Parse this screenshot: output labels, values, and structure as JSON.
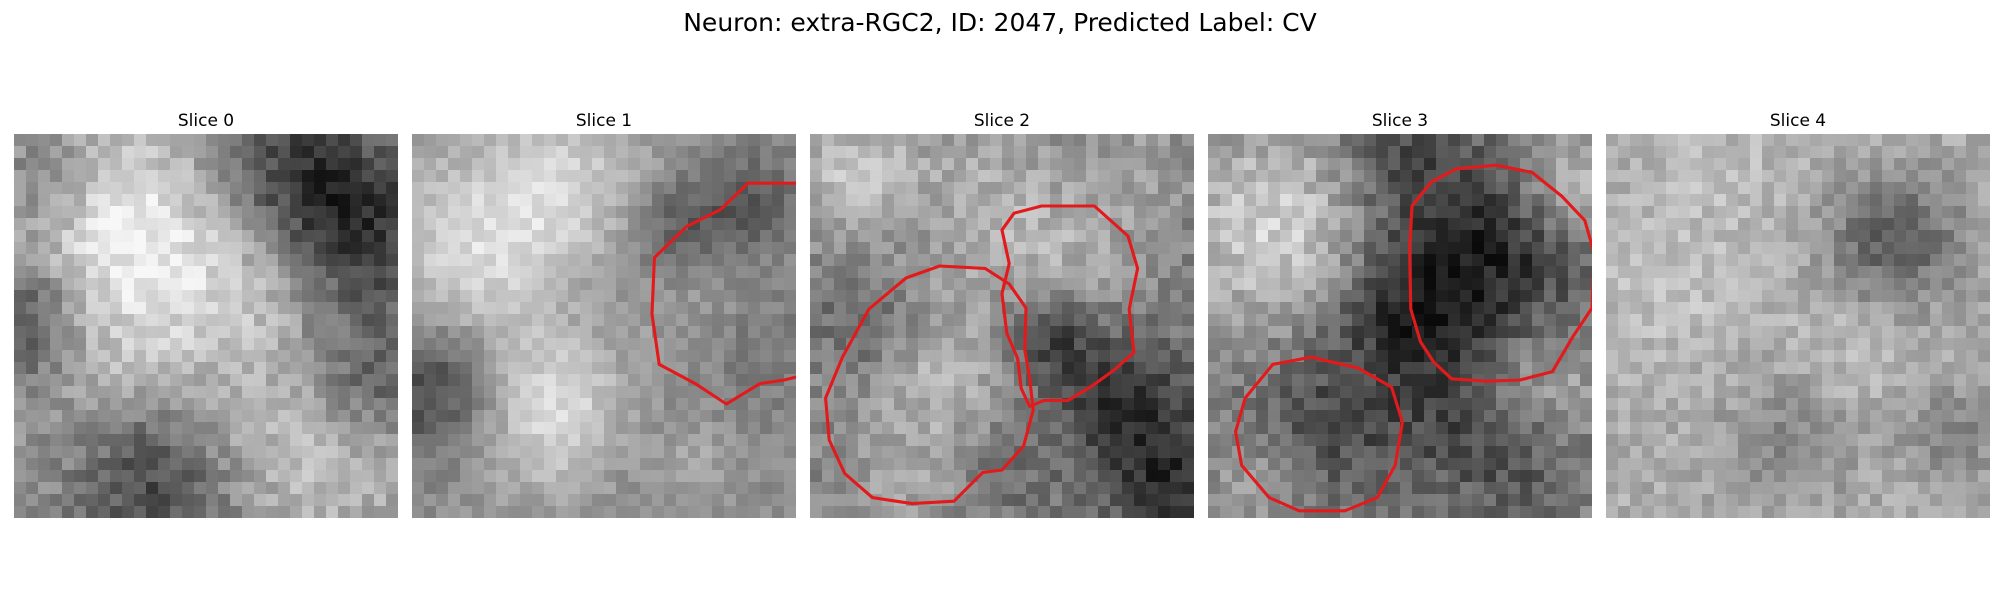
{
  "figure": {
    "title": "Neuron: extra-RGC2, ID: 2047, Predicted Label: CV"
  },
  "contour_color": "#e31a1c",
  "panels": [
    {
      "title": "Slice 0",
      "contours": []
    },
    {
      "title": "Slice 1",
      "contours": [
        [
          [
            25.7,
            6.3
          ],
          [
            28.0,
            4.1
          ],
          [
            32.0,
            4.1
          ],
          [
            34.6,
            5.9
          ],
          [
            37.0,
            7.4
          ],
          [
            39.1,
            10.1
          ],
          [
            39.0,
            15.0
          ],
          [
            37.3,
            17.5
          ],
          [
            35.0,
            19.6
          ],
          [
            33.1,
            20.0
          ],
          [
            31.0,
            20.5
          ],
          [
            29.0,
            20.8
          ],
          [
            26.2,
            22.5
          ],
          [
            23.6,
            20.8
          ],
          [
            20.6,
            19.2
          ],
          [
            20.0,
            15.0
          ],
          [
            20.2,
            10.3
          ],
          [
            22.9,
            7.7
          ]
        ]
      ]
    },
    {
      "title": "Slice 2",
      "contours": [
        [
          [
            16.0,
            8.0
          ],
          [
            17.0,
            6.6
          ],
          [
            19.3,
            6.0
          ],
          [
            23.7,
            6.0
          ],
          [
            26.5,
            8.5
          ],
          [
            27.3,
            11.2
          ],
          [
            26.6,
            14.6
          ],
          [
            27.0,
            18.2
          ],
          [
            25.3,
            19.7
          ],
          [
            23.5,
            21.0
          ],
          [
            21.5,
            22.2
          ],
          [
            19.5,
            22.2
          ],
          [
            18.3,
            22.7
          ],
          [
            17.6,
            21.2
          ],
          [
            17.3,
            18.7
          ],
          [
            16.4,
            16.6
          ],
          [
            16.0,
            13.3
          ],
          [
            16.6,
            10.8
          ]
        ],
        [
          [
            8.0,
            12.0
          ],
          [
            10.8,
            11.0
          ],
          [
            14.6,
            11.2
          ],
          [
            16.6,
            12.5
          ],
          [
            18.0,
            14.5
          ],
          [
            17.9,
            18.0
          ],
          [
            18.3,
            20.3
          ],
          [
            18.6,
            23.0
          ],
          [
            17.8,
            26.0
          ],
          [
            16.0,
            28.0
          ],
          [
            14.4,
            28.2
          ],
          [
            12.0,
            30.6
          ],
          [
            8.5,
            30.8
          ],
          [
            5.2,
            30.3
          ],
          [
            2.9,
            28.3
          ],
          [
            1.6,
            25.5
          ],
          [
            1.3,
            22.0
          ],
          [
            2.7,
            18.6
          ],
          [
            4.9,
            14.6
          ]
        ]
      ]
    },
    {
      "title": "Slice 3",
      "contours": [
        [
          [
            16.8,
            9.6
          ],
          [
            17.0,
            6.0
          ],
          [
            18.6,
            4.0
          ],
          [
            20.7,
            2.9
          ],
          [
            24.0,
            2.6
          ],
          [
            27.0,
            3.2
          ],
          [
            29.5,
            5.2
          ],
          [
            31.4,
            7.2
          ],
          [
            32.2,
            10.0
          ],
          [
            32.0,
            14.5
          ],
          [
            30.4,
            16.9
          ],
          [
            28.7,
            19.8
          ],
          [
            26.0,
            20.5
          ],
          [
            23.2,
            20.6
          ],
          [
            20.3,
            20.4
          ],
          [
            18.8,
            19.0
          ],
          [
            17.7,
            17.3
          ],
          [
            16.9,
            14.6
          ]
        ],
        [
          [
            3.1,
            22.0
          ],
          [
            5.4,
            19.2
          ],
          [
            8.6,
            18.6
          ],
          [
            12.5,
            19.5
          ],
          [
            15.3,
            21.1
          ],
          [
            16.2,
            24.0
          ],
          [
            15.6,
            27.6
          ],
          [
            14.1,
            30.3
          ],
          [
            11.4,
            31.4
          ],
          [
            7.6,
            31.4
          ],
          [
            5.1,
            30.3
          ],
          [
            2.8,
            27.6
          ],
          [
            2.3,
            24.8
          ]
        ]
      ]
    },
    {
      "title": "Slice 4",
      "contours": []
    }
  ]
}
